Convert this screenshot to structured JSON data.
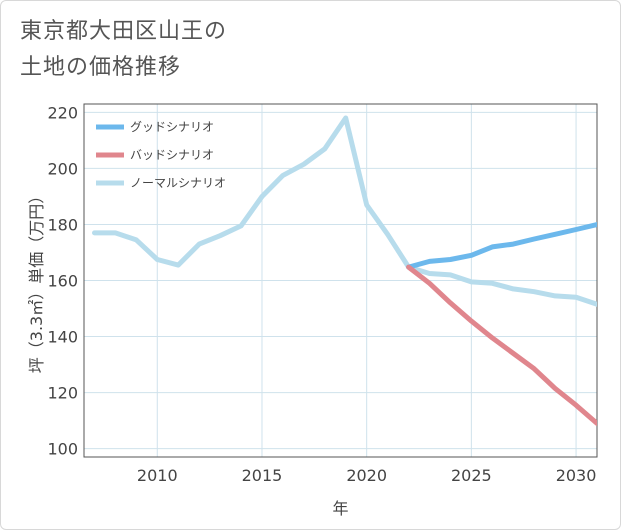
{
  "title": {
    "line1": "東京都大田区山王の",
    "line2": "土地の価格推移"
  },
  "chart_data": {
    "type": "line",
    "xlabel": "年",
    "ylabel": "坪（3.3㎡）単価（万円）",
    "xlim": [
      2006.5,
      2031
    ],
    "ylim": [
      97,
      223
    ],
    "x_ticks": [
      2010,
      2015,
      2020,
      2025,
      2030
    ],
    "y_ticks": [
      100,
      120,
      140,
      160,
      180,
      200,
      220
    ],
    "grid": true,
    "legend_position": "top-left",
    "series": [
      {
        "name": "グッドシナリオ",
        "color": "#6cb8ec",
        "x": [
          2022,
          2023,
          2024,
          2025,
          2026,
          2027,
          2028,
          2029,
          2030,
          2031
        ],
        "y": [
          164.8,
          166.8,
          167.5,
          169,
          172,
          173,
          174.8,
          176.5,
          178.2,
          180
        ]
      },
      {
        "name": "バッドシナリオ",
        "color": "#e0868d",
        "x": [
          2022,
          2023,
          2024,
          2025,
          2026,
          2027,
          2028,
          2029,
          2030,
          2031
        ],
        "y": [
          164.8,
          159,
          152,
          145.5,
          139.5,
          134,
          128.5,
          121.5,
          115.5,
          109
        ]
      },
      {
        "name": "ノーマルシナリオ",
        "color": "#b7dcec",
        "x": [
          2007,
          2008,
          2009,
          2010,
          2011,
          2012,
          2013,
          2014,
          2015,
          2016,
          2017,
          2018,
          2019,
          2020,
          2021,
          2022,
          2023,
          2024,
          2025,
          2026,
          2027,
          2028,
          2029,
          2030,
          2031
        ],
        "y": [
          177,
          177,
          174.5,
          167.5,
          165.5,
          173,
          176,
          179.5,
          190,
          197.5,
          201.5,
          207,
          218,
          187,
          176.5,
          164.8,
          162.5,
          162,
          159.5,
          159,
          157,
          156,
          154.5,
          154,
          151.5
        ]
      }
    ]
  }
}
